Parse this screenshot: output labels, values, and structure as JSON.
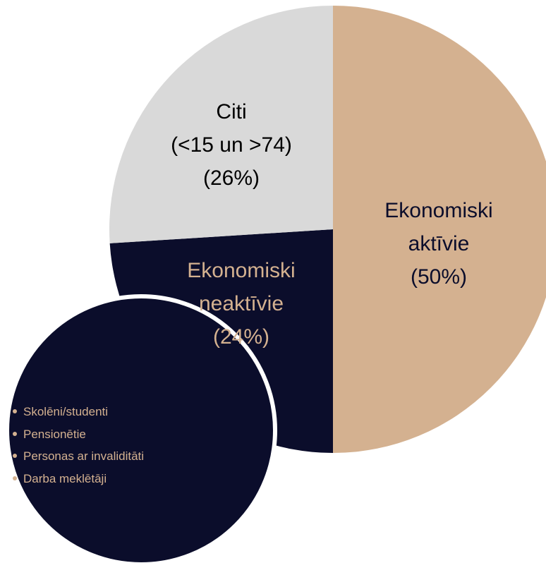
{
  "chart_data": {
    "type": "pie",
    "categories": [
      "Ekonomiski aktīvie",
      "Ekonomiski neaktīvie",
      "Citi"
    ],
    "values": [
      50,
      24,
      26
    ],
    "value_labels": [
      "(50%)",
      "(24%)",
      "(26%)"
    ],
    "colors": [
      "#d4b190",
      "#0b0d2b",
      "#d9d9d9"
    ],
    "annotations": [
      "(<15 un >74)"
    ],
    "bullets": [
      "Skolēni/studenti",
      "Pensionētie",
      "Personas ar invaliditāti",
      "Darba meklētāji"
    ]
  }
}
